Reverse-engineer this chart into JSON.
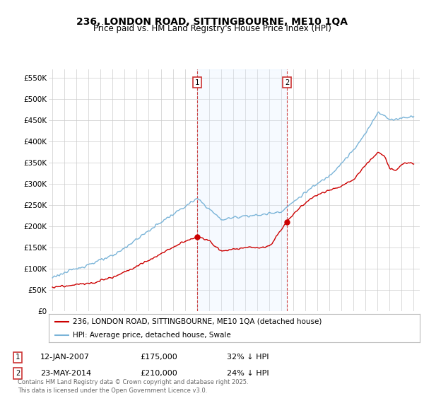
{
  "title": "236, LONDON ROAD, SITTINGBOURNE, ME10 1QA",
  "subtitle": "Price paid vs. HM Land Registry's House Price Index (HPI)",
  "ylabel_ticks": [
    "£0",
    "£50K",
    "£100K",
    "£150K",
    "£200K",
    "£250K",
    "£300K",
    "£350K",
    "£400K",
    "£450K",
    "£500K",
    "£550K"
  ],
  "ytick_values": [
    0,
    50000,
    100000,
    150000,
    200000,
    250000,
    300000,
    350000,
    400000,
    450000,
    500000,
    550000
  ],
  "ylim": [
    0,
    570000
  ],
  "hpi_color": "#7ab4d8",
  "price_color": "#cc0000",
  "shade_color": "#ddeeff",
  "vline_color": "#cc4444",
  "annotation1": [
    "1",
    "12-JAN-2007",
    "£175,000",
    "32% ↓ HPI"
  ],
  "annotation2": [
    "2",
    "23-MAY-2014",
    "£210,000",
    "24% ↓ HPI"
  ],
  "legend1": "236, LONDON ROAD, SITTINGBOURNE, ME10 1QA (detached house)",
  "legend2": "HPI: Average price, detached house, Swale",
  "footer": "Contains HM Land Registry data © Crown copyright and database right 2025.\nThis data is licensed under the Open Government Licence v3.0."
}
